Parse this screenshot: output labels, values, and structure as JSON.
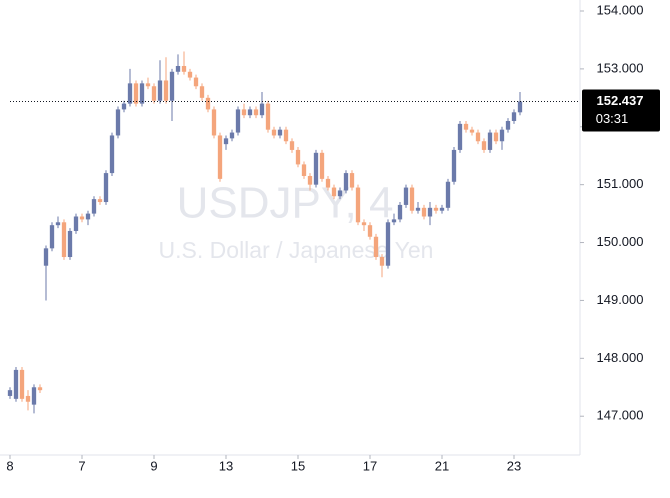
{
  "chart_data": {
    "type": "candlestick",
    "title": "USDJPY, 4",
    "subtitle": "U.S. Dollar / Japanese Yen",
    "up_color": "#6b7aaa",
    "down_color": "#f4a57c",
    "x": [
      -2,
      -1,
      0,
      1,
      2,
      3,
      4,
      5,
      6,
      7,
      8,
      9,
      10,
      11,
      12,
      13,
      14,
      15,
      16,
      17,
      18,
      19,
      20,
      21,
      22,
      23,
      24,
      25,
      26,
      27,
      28,
      29,
      30,
      31,
      32,
      33,
      34,
      35,
      36,
      37,
      38,
      39,
      40,
      41,
      42,
      43,
      44,
      45,
      46,
      47,
      48,
      49,
      50,
      51,
      52,
      53,
      54,
      55,
      56,
      57,
      58,
      59,
      60,
      61,
      62,
      63,
      64,
      65,
      66,
      67,
      68,
      69,
      70,
      71,
      72,
      73,
      74,
      75,
      76,
      77,
      78,
      79,
      80,
      81,
      82,
      83
    ],
    "open": [
      147.35,
      147.3,
      147.8,
      147.35,
      147.2,
      147.5,
      149.6,
      149.9,
      150.3,
      150.35,
      149.75,
      150.2,
      150.45,
      150.4,
      150.5,
      150.75,
      150.7,
      151.2,
      151.85,
      152.3,
      152.4,
      152.75,
      152.4,
      152.75,
      152.7,
      152.45,
      152.8,
      152.45,
      152.95,
      153.05,
      152.95,
      152.85,
      152.7,
      152.5,
      152.3,
      151.85,
      151.7,
      151.8,
      151.9,
      152.3,
      152.2,
      152.3,
      152.2,
      152.4,
      151.95,
      151.85,
      151.95,
      151.75,
      151.6,
      151.35,
      151.15,
      151.0,
      151.55,
      151.1,
      150.95,
      150.8,
      150.9,
      151.2,
      150.95,
      150.35,
      150.3,
      150.1,
      149.75,
      149.6,
      150.35,
      150.4,
      150.65,
      150.95,
      150.55,
      150.6,
      150.45,
      150.6,
      150.55,
      150.6,
      151.05,
      151.6,
      152.05,
      151.95,
      151.9,
      151.75,
      151.6,
      151.9,
      151.75,
      151.95,
      152.1,
      152.25
    ],
    "high": [
      147.5,
      147.85,
      147.85,
      147.45,
      147.55,
      147.55,
      149.95,
      150.35,
      150.45,
      150.4,
      150.25,
      150.5,
      150.5,
      150.55,
      150.8,
      150.8,
      151.25,
      151.9,
      152.35,
      152.45,
      153.0,
      152.8,
      152.8,
      152.85,
      152.75,
      153.15,
      153.2,
      153.0,
      153.25,
      153.3,
      153.0,
      152.9,
      152.75,
      152.55,
      152.35,
      151.9,
      151.85,
      151.95,
      152.35,
      152.4,
      152.35,
      152.35,
      152.6,
      152.45,
      152.0,
      152.0,
      152.0,
      151.8,
      151.65,
      151.4,
      151.2,
      151.6,
      151.6,
      151.15,
      151.0,
      150.95,
      151.25,
      151.25,
      151.0,
      150.4,
      150.35,
      150.15,
      149.8,
      150.4,
      150.5,
      150.7,
      151.0,
      151.0,
      150.7,
      150.65,
      150.7,
      150.65,
      150.65,
      151.1,
      151.65,
      152.1,
      152.1,
      152.0,
      151.95,
      151.8,
      151.95,
      151.95,
      152.0,
      152.15,
      152.3,
      152.6
    ],
    "low": [
      147.3,
      147.25,
      147.25,
      147.1,
      147.05,
      147.4,
      149.0,
      149.85,
      150.25,
      149.7,
      149.7,
      150.15,
      150.35,
      150.3,
      150.45,
      150.65,
      150.65,
      151.15,
      151.8,
      152.25,
      152.35,
      152.35,
      152.35,
      152.65,
      152.4,
      152.4,
      152.4,
      152.1,
      152.9,
      152.9,
      152.8,
      152.65,
      152.45,
      152.25,
      151.8,
      151.05,
      151.6,
      151.75,
      151.85,
      152.15,
      152.15,
      152.15,
      152.15,
      151.9,
      151.8,
      151.8,
      151.7,
      151.55,
      151.3,
      151.1,
      150.9,
      150.95,
      151.05,
      150.9,
      150.75,
      150.75,
      150.85,
      150.9,
      150.3,
      150.2,
      150.05,
      149.7,
      149.4,
      149.55,
      150.3,
      150.35,
      150.6,
      150.5,
      150.5,
      150.4,
      150.3,
      150.5,
      150.5,
      150.55,
      151.0,
      151.55,
      151.9,
      151.85,
      151.7,
      151.55,
      151.55,
      151.7,
      151.6,
      151.9,
      152.05,
      152.2
    ],
    "close": [
      147.45,
      147.8,
      147.3,
      147.25,
      147.5,
      147.45,
      149.9,
      150.3,
      150.35,
      149.75,
      150.2,
      150.45,
      150.4,
      150.5,
      150.75,
      150.7,
      151.2,
      151.85,
      152.3,
      152.4,
      152.75,
      152.4,
      152.75,
      152.7,
      152.45,
      152.8,
      152.45,
      152.95,
      153.05,
      152.95,
      152.85,
      152.7,
      152.5,
      152.3,
      151.85,
      151.1,
      151.8,
      151.9,
      152.3,
      152.2,
      152.3,
      152.2,
      152.4,
      151.95,
      151.85,
      151.95,
      151.75,
      151.6,
      151.35,
      151.15,
      151.0,
      151.55,
      151.1,
      150.95,
      150.8,
      150.9,
      151.2,
      150.95,
      150.35,
      150.3,
      150.1,
      149.75,
      149.6,
      150.35,
      150.4,
      150.65,
      150.95,
      150.55,
      150.6,
      150.45,
      150.6,
      150.55,
      150.6,
      151.05,
      151.6,
      152.05,
      151.95,
      151.9,
      151.75,
      151.6,
      151.9,
      151.75,
      151.95,
      152.1,
      152.25,
      152.437
    ],
    "ylim": [
      146.33,
      154.19
    ],
    "yticks": [
      {
        "value": 147,
        "label": "147.000"
      },
      {
        "value": 148,
        "label": "148.000"
      },
      {
        "value": 149,
        "label": "149.000"
      },
      {
        "value": 150,
        "label": "150.000"
      },
      {
        "value": 151,
        "label": "151.000"
      },
      {
        "value": 152,
        "label": "152.000"
      },
      {
        "value": 153,
        "label": "153.000"
      },
      {
        "value": 154,
        "label": "154.000"
      }
    ],
    "xlim": [
      -2,
      93
    ],
    "xticks": [
      {
        "value": -2,
        "label": "8"
      },
      {
        "value": 10,
        "label": "7"
      },
      {
        "value": 22,
        "label": "9"
      },
      {
        "value": 34,
        "label": "13"
      },
      {
        "value": 46,
        "label": "15"
      },
      {
        "value": 58,
        "label": "17"
      },
      {
        "value": 70,
        "label": "21"
      },
      {
        "value": 82,
        "label": "23"
      }
    ],
    "last_price": 152.437,
    "countdown": "03:31"
  }
}
